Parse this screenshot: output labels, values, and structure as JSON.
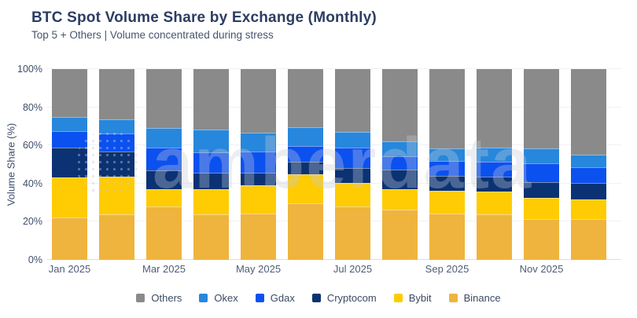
{
  "header": {
    "title": "BTC Spot Volume Share by Exchange (Monthly)",
    "subtitle": "Top 5 + Others | Volume concentrated during stress"
  },
  "watermark": {
    "text": "amberdata"
  },
  "chart_data": {
    "type": "bar",
    "stacked": true,
    "title": "BTC Spot Volume Share by Exchange (Monthly)",
    "subtitle": "Top 5 + Others | Volume concentrated during stress",
    "xlabel": "",
    "ylabel": "Volume Share (%)",
    "ylim": [
      0,
      100
    ],
    "y_ticks": [
      "0%",
      "20%",
      "40%",
      "60%",
      "80%",
      "100%"
    ],
    "grid": "horizontal-faint",
    "legend_position": "bottom",
    "legend_order": [
      "Others",
      "Okex",
      "Gdax",
      "Cryptocom",
      "Bybit",
      "Binance"
    ],
    "categories": [
      "Jan 2025",
      "Feb 2025",
      "Mar 2025",
      "Apr 2025",
      "May 2025",
      "Jun 2025",
      "Jul 2025",
      "Aug 2025",
      "Sep 2025",
      "Oct 2025",
      "Nov 2025",
      "Dec 2025"
    ],
    "x_tick_labels_shown": [
      "Jan 2025",
      "Mar 2025",
      "May 2025",
      "Jul 2025",
      "Sep 2025",
      "Nov 2025"
    ],
    "series": [
      {
        "name": "Binance",
        "color": "#efb43d",
        "values": [
          22.3,
          24.0,
          28.1,
          24.0,
          24.4,
          29.5,
          27.9,
          26.5,
          24.4,
          23.7,
          21.3,
          21.3
        ]
      },
      {
        "name": "Bybit",
        "color": "#ffcb02",
        "values": [
          21.0,
          19.6,
          8.9,
          13.0,
          14.7,
          15.5,
          12.3,
          10.5,
          11.9,
          12.0,
          11.3,
          10.4
        ]
      },
      {
        "name": "Cryptocom",
        "color": "#0b3273",
        "values": [
          15.4,
          13.1,
          10.0,
          8.7,
          6.6,
          6.4,
          7.8,
          10.3,
          7.7,
          7.9,
          8.3,
          8.8
        ]
      },
      {
        "name": "Gdax",
        "color": "#0b51f0",
        "values": [
          8.7,
          9.6,
          12.0,
          10.5,
          11.0,
          8.3,
          10.7,
          6.9,
          7.9,
          7.8,
          9.6,
          7.9
        ]
      },
      {
        "name": "Okex",
        "color": "#2787dc",
        "values": [
          7.6,
          7.5,
          10.0,
          12.1,
          9.8,
          10.0,
          8.2,
          7.9,
          6.4,
          7.3,
          7.8,
          6.6
        ]
      },
      {
        "name": "Others",
        "color": "#8a8a8a",
        "values": [
          25.0,
          26.2,
          31.0,
          31.7,
          33.5,
          30.3,
          33.1,
          37.9,
          41.7,
          41.3,
          41.7,
          45.0
        ]
      }
    ]
  }
}
